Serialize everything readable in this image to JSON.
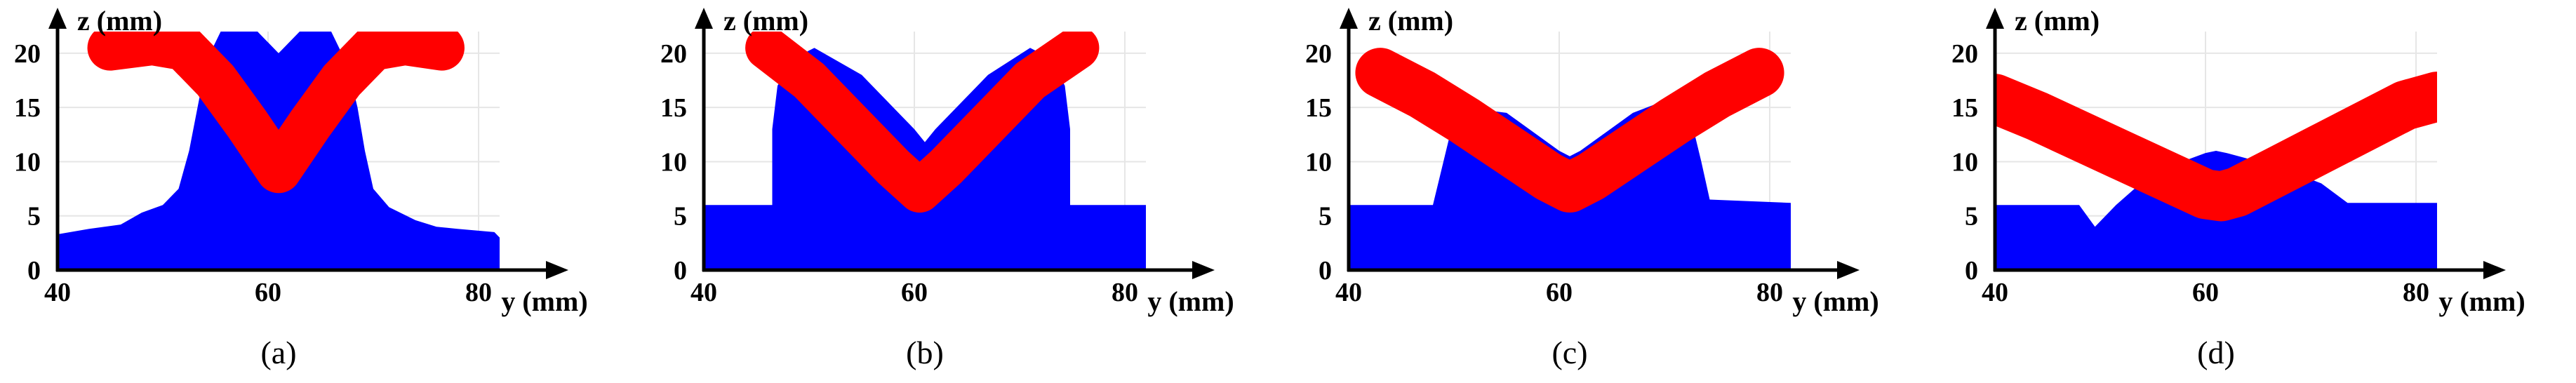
{
  "colors": {
    "background": "#ffffff",
    "blue_region": "#0000ff",
    "red_band": "#ff0000",
    "axis": "#000000",
    "grid": "#e6e6e6"
  },
  "chart_data": [
    {
      "type": "area",
      "caption": "(a)",
      "xlabel": "y (mm)",
      "ylabel": "z (mm)",
      "xlim": [
        40,
        82
      ],
      "ylim": [
        0,
        22
      ],
      "xticks": [
        40,
        60,
        80
      ],
      "yticks": [
        0,
        5,
        10,
        15,
        20
      ],
      "grid": true,
      "regions": [
        {
          "color": "blue",
          "boundary": [
            [
              40,
              0
            ],
            [
              40,
              3.3
            ],
            [
              43,
              3.8
            ],
            [
              46,
              4.2
            ],
            [
              48,
              5.3
            ],
            [
              50,
              6
            ],
            [
              51.5,
              7.5
            ],
            [
              52.5,
              11
            ],
            [
              53.5,
              16
            ],
            [
              54.5,
              20
            ],
            [
              55.5,
              22
            ],
            [
              59,
              22
            ],
            [
              61,
              20
            ],
            [
              63,
              22
            ],
            [
              66,
              22
            ],
            [
              67.5,
              19
            ],
            [
              68.5,
              15
            ],
            [
              69.2,
              11
            ],
            [
              70,
              7.5
            ],
            [
              71.5,
              5.8
            ],
            [
              74,
              4.6
            ],
            [
              76,
              4
            ],
            [
              78,
              3.8
            ],
            [
              81.5,
              3.5
            ],
            [
              82,
              3
            ],
            [
              82,
              0
            ]
          ]
        },
        {
          "color": "red",
          "centerline": [
            [
              45,
              20.5
            ],
            [
              49,
              21
            ],
            [
              52,
              20.5
            ],
            [
              55,
              17.5
            ],
            [
              58,
              13.5
            ],
            [
              61,
              9.2
            ],
            [
              64,
              13.5
            ],
            [
              67,
              17.5
            ],
            [
              70,
              20.5
            ],
            [
              73,
              21
            ],
            [
              76.5,
              20.5
            ]
          ],
          "thickness": 4.2
        }
      ]
    },
    {
      "type": "area",
      "caption": "(b)",
      "xlabel": "y (mm)",
      "ylabel": "z (mm)",
      "xlim": [
        40,
        82
      ],
      "ylim": [
        0,
        22
      ],
      "xticks": [
        40,
        60,
        80
      ],
      "yticks": [
        0,
        5,
        10,
        15,
        20
      ],
      "grid": true,
      "regions": [
        {
          "color": "blue",
          "boundary": [
            [
              40,
              0
            ],
            [
              40,
              6
            ],
            [
              46.5,
              6
            ],
            [
              46.5,
              13
            ],
            [
              47,
              17
            ],
            [
              48.5,
              19.5
            ],
            [
              50.5,
              20.5
            ],
            [
              55,
              18
            ],
            [
              60,
              13
            ],
            [
              61,
              11.8
            ],
            [
              62,
              13
            ],
            [
              67,
              18
            ],
            [
              71,
              20.5
            ],
            [
              73,
              19.5
            ],
            [
              74.3,
              17
            ],
            [
              74.8,
              13
            ],
            [
              74.8,
              6
            ],
            [
              82,
              6
            ],
            [
              82,
              0
            ]
          ]
        },
        {
          "color": "red",
          "centerline": [
            [
              46,
              20.5
            ],
            [
              50,
              17.5
            ],
            [
              54,
              13.5
            ],
            [
              58,
              9.5
            ],
            [
              60.5,
              7.3
            ],
            [
              63,
              9.5
            ],
            [
              67,
              13.5
            ],
            [
              71,
              17.5
            ],
            [
              75.5,
              20.5
            ]
          ],
          "thickness": 4.0
        }
      ]
    },
    {
      "type": "area",
      "caption": "(c)",
      "xlabel": "y (mm)",
      "ylabel": "z (mm)",
      "xlim": [
        40,
        82
      ],
      "ylim": [
        0,
        22
      ],
      "xticks": [
        40,
        60,
        80
      ],
      "yticks": [
        0,
        5,
        10,
        15,
        20
      ],
      "grid": true,
      "regions": [
        {
          "color": "blue",
          "boundary": [
            [
              40,
              0
            ],
            [
              40,
              6
            ],
            [
              48,
              6
            ],
            [
              48.5,
              8
            ],
            [
              49.5,
              12
            ],
            [
              51,
              15
            ],
            [
              55,
              14.5
            ],
            [
              60,
              11
            ],
            [
              61,
              10.5
            ],
            [
              62,
              11
            ],
            [
              67,
              14.5
            ],
            [
              71,
              16
            ],
            [
              72.5,
              14
            ],
            [
              73.5,
              10
            ],
            [
              74.3,
              6.5
            ],
            [
              82,
              6.2
            ],
            [
              82,
              0
            ]
          ]
        },
        {
          "color": "red",
          "centerline": [
            [
              43,
              18.2
            ],
            [
              47,
              16.2
            ],
            [
              51,
              13.8
            ],
            [
              55,
              11.2
            ],
            [
              59,
              8.6
            ],
            [
              61,
              7.6
            ],
            [
              63,
              8.6
            ],
            [
              67,
              11.2
            ],
            [
              71,
              13.8
            ],
            [
              75,
              16.2
            ],
            [
              79,
              18.2
            ]
          ],
          "thickness": 4.6
        }
      ]
    },
    {
      "type": "area",
      "caption": "(d)",
      "xlabel": "y (mm)",
      "ylabel": "z (mm)",
      "xlim": [
        40,
        82
      ],
      "ylim": [
        0,
        22
      ],
      "xticks": [
        40,
        60,
        80
      ],
      "yticks": [
        0,
        5,
        10,
        15,
        20
      ],
      "grid": true,
      "regions": [
        {
          "color": "blue",
          "boundary": [
            [
              40,
              0
            ],
            [
              40,
              6
            ],
            [
              48,
              6
            ],
            [
              49.5,
              4
            ],
            [
              51.5,
              6
            ],
            [
              55,
              9
            ],
            [
              60,
              10.8
            ],
            [
              61,
              11
            ],
            [
              62,
              10.8
            ],
            [
              67,
              9.5
            ],
            [
              71,
              8
            ],
            [
              73.5,
              6.2
            ],
            [
              82,
              6.2
            ],
            [
              82,
              0
            ]
          ]
        },
        {
          "color": "red",
          "centerline": [
            [
              40,
              15.8
            ],
            [
              44,
              14.2
            ],
            [
              48,
              12.4
            ],
            [
              52,
              10.6
            ],
            [
              56,
              8.8
            ],
            [
              60,
              7
            ],
            [
              61.5,
              6.8
            ],
            [
              63,
              7.2
            ],
            [
              67,
              9.2
            ],
            [
              71,
              11.2
            ],
            [
              75,
              13.2
            ],
            [
              79,
              15.2
            ],
            [
              82,
              16
            ]
          ],
          "thickness": 4.6
        }
      ]
    }
  ]
}
